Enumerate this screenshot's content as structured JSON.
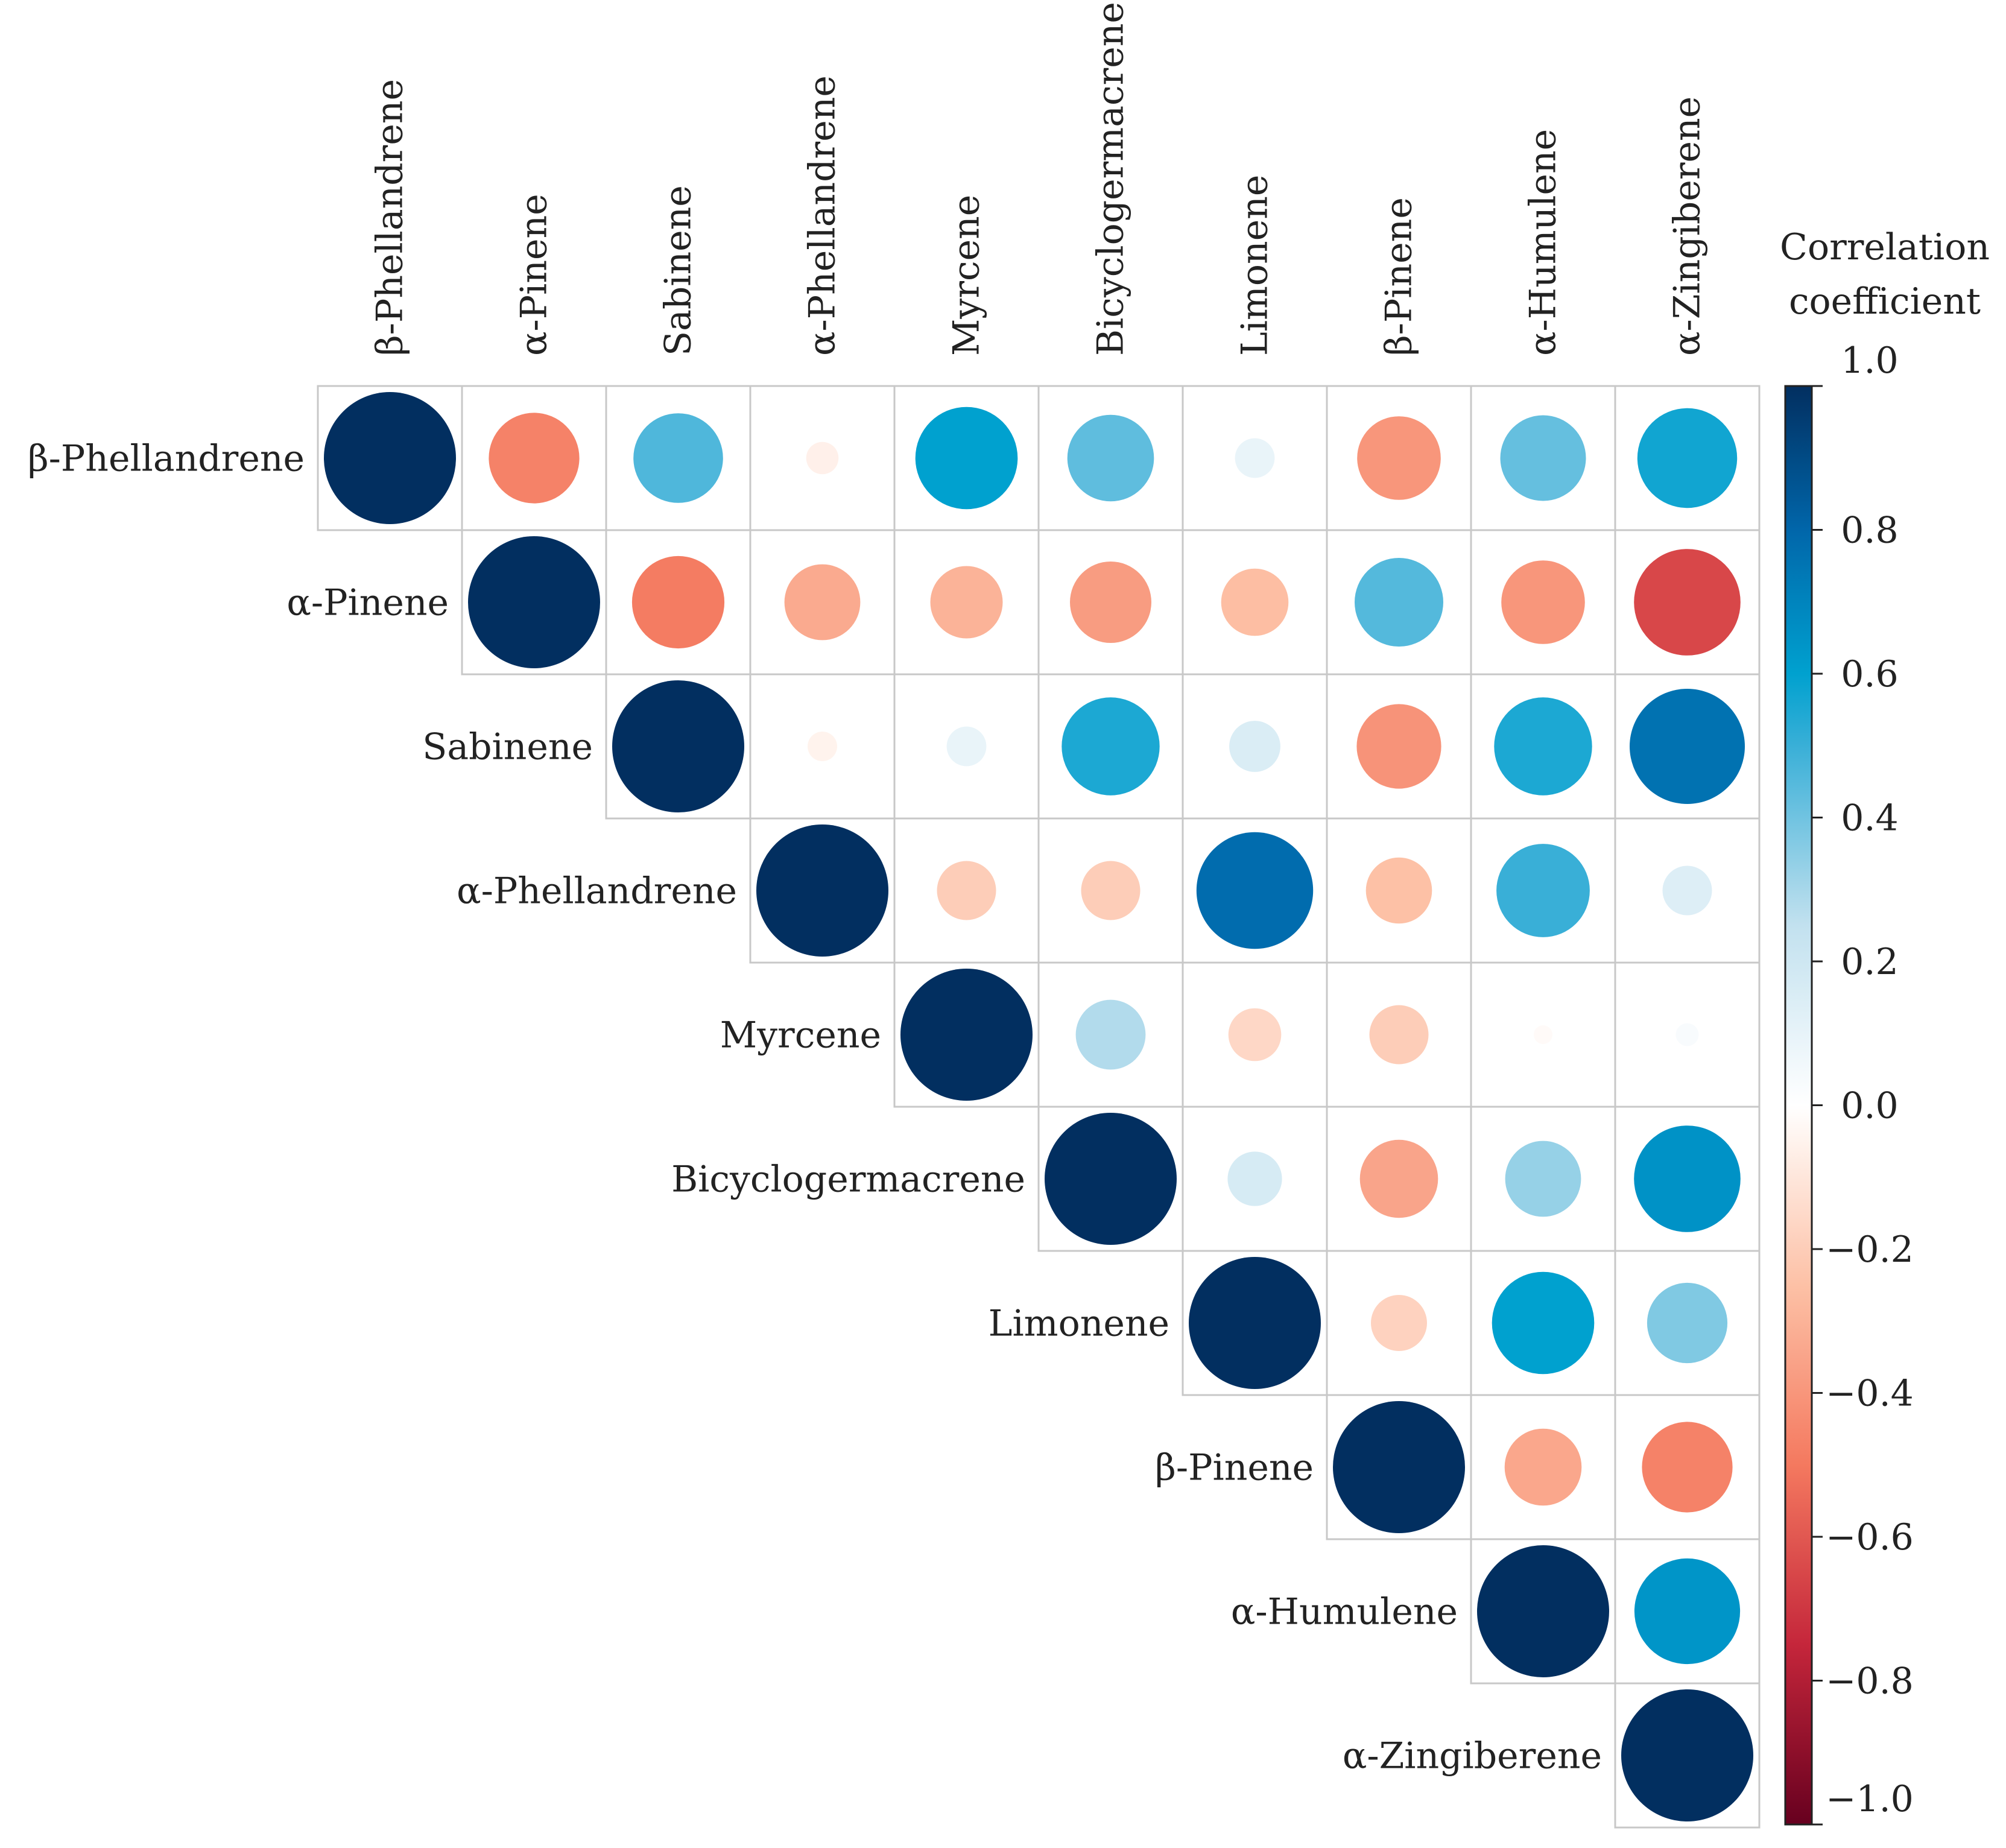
{
  "chart_data": {
    "type": "heatmap",
    "subtype": "correlation-circle-upper-triangle",
    "title": "",
    "variables": [
      "β-Phellandrene",
      "α-Pinene",
      "Sabinene",
      "α-Phellandrene",
      "Myrcene",
      "Bicyclogermacrene",
      "Limonene",
      "β-Pinene",
      "α-Humulene",
      "α-Zingiberene"
    ],
    "matrix": [
      [
        1.0,
        -0.47,
        0.46,
        -0.06,
        0.6,
        0.43,
        0.09,
        -0.4,
        0.42,
        0.57
      ],
      [
        -0.47,
        1.0,
        -0.49,
        -0.33,
        -0.3,
        -0.38,
        -0.26,
        0.45,
        -0.4,
        -0.65
      ],
      [
        0.46,
        -0.49,
        1.0,
        -0.05,
        0.09,
        0.55,
        0.15,
        -0.41,
        0.55,
        0.76
      ],
      [
        -0.06,
        -0.33,
        -0.05,
        1.0,
        -0.2,
        -0.2,
        0.78,
        -0.25,
        0.5,
        0.14
      ],
      [
        0.6,
        -0.3,
        0.09,
        -0.2,
        1.0,
        0.28,
        -0.16,
        -0.2,
        -0.02,
        0.03
      ],
      [
        0.43,
        -0.38,
        0.55,
        -0.2,
        0.28,
        1.0,
        0.17,
        -0.35,
        0.33,
        0.65
      ],
      [
        0.09,
        -0.26,
        0.15,
        0.78,
        -0.16,
        0.17,
        1.0,
        -0.18,
        0.6,
        0.37
      ],
      [
        -0.4,
        0.45,
        -0.41,
        -0.25,
        -0.2,
        -0.35,
        -0.18,
        1.0,
        -0.34,
        -0.47
      ],
      [
        0.42,
        -0.4,
        0.55,
        0.5,
        -0.02,
        0.33,
        0.6,
        -0.34,
        1.0,
        0.64
      ],
      [
        0.57,
        -0.65,
        0.76,
        0.14,
        0.03,
        0.65,
        0.37,
        -0.47,
        0.64,
        1.0
      ]
    ],
    "colorbar": {
      "title_line1": "Correlation",
      "title_line2": "coefficient",
      "range": [
        -1.0,
        1.0
      ],
      "ticks": [
        {
          "value": 1.0,
          "label": "1.0"
        },
        {
          "value": 0.8,
          "label": "0.8"
        },
        {
          "value": 0.6,
          "label": "0.6"
        },
        {
          "value": 0.4,
          "label": "0.4"
        },
        {
          "value": 0.2,
          "label": "0.2"
        },
        {
          "value": 0.0,
          "label": "0.0"
        },
        {
          "value": -0.2,
          "label": "−0.2"
        },
        {
          "value": -0.4,
          "label": "−0.4"
        },
        {
          "value": -0.6,
          "label": "−0.6"
        },
        {
          "value": -0.8,
          "label": "−0.8"
        },
        {
          "value": -1.0,
          "label": "−1.0"
        }
      ],
      "palette": [
        {
          "value": -1.0,
          "color": "#67001f"
        },
        {
          "value": -0.75,
          "color": "#c5263b"
        },
        {
          "value": -0.5,
          "color": "#f4795f"
        },
        {
          "value": -0.25,
          "color": "#fdc1a6"
        },
        {
          "value": 0.0,
          "color": "#ffffff"
        },
        {
          "value": 0.25,
          "color": "#c2e1ef"
        },
        {
          "value": 0.5,
          "color": "#39afd7"
        },
        {
          "value": 0.6,
          "color": "#00a1cf"
        },
        {
          "value": 0.8,
          "color": "#0166aa"
        },
        {
          "value": 1.0,
          "color": "#022f60"
        }
      ]
    },
    "legend_position": "right"
  }
}
